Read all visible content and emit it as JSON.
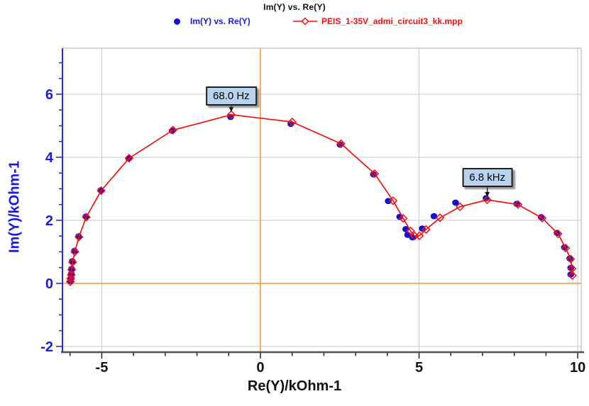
{
  "title": "Im(Y) vs. Re(Y)",
  "legend": [
    {
      "label": "Im(Y) vs. Re(Y)",
      "color": "#1a1ae0",
      "marker": "filled-circle"
    },
    {
      "label": "PEIS_1-35V_admi_circuit3_kk.mpp",
      "color": "#f50f0f",
      "marker": "line-open-diamond"
    }
  ],
  "colors": {
    "measured_blue": "#1111d4",
    "fit_red": "#f50f0f",
    "axis_blue": "#2c2cd8",
    "blue_text": "#1a1ae0",
    "black_text": "#111111",
    "zero_line_orange": "#ff9122",
    "grid_gray": "#c9c9c9",
    "border_gray": "#bfbfbf",
    "bottom_axis_gray": "#4f4f4f",
    "annotation_fill": "#b8d3ee",
    "annotation_border": "#1f1f1f"
  },
  "chart_data": {
    "type": "scatter",
    "title": "Im(Y) vs. Re(Y)",
    "xlabel": "Re(Y)/kOhm-1",
    "ylabel": "Im(Y)/kOhm-1",
    "xlim": [
      -6.24,
      10.11
    ],
    "ylim": [
      -2.16,
      7.46
    ],
    "grid": true,
    "legend_position": "top",
    "x_major_ticks": [
      -5,
      0,
      5,
      10
    ],
    "x_tick_labels": [
      "-5",
      "0",
      "5",
      "10"
    ],
    "x_minor_step": 1,
    "y_major_ticks": [
      -2,
      0,
      2,
      4,
      6
    ],
    "y_tick_labels": [
      "-2",
      "0",
      "2",
      "4",
      "6"
    ],
    "y_minor_step": 0.5,
    "zero_lines": {
      "x": 0,
      "y": 0
    },
    "series": [
      {
        "name": "Im(Y) vs. Re(Y)",
        "kind": "scatter",
        "marker": "filled-circle",
        "color": "#1111d4",
        "points": [
          [
            -5.98,
            0.08
          ],
          [
            -5.97,
            0.18
          ],
          [
            -5.96,
            0.3
          ],
          [
            -5.95,
            0.46
          ],
          [
            -5.93,
            0.7
          ],
          [
            -5.86,
            1.03
          ],
          [
            -5.73,
            1.49
          ],
          [
            -5.5,
            2.12
          ],
          [
            -5.03,
            2.95
          ],
          [
            -4.15,
            3.96
          ],
          [
            -2.78,
            4.84
          ],
          [
            -0.94,
            5.28
          ],
          [
            0.96,
            5.06
          ],
          [
            2.51,
            4.4
          ],
          [
            3.56,
            3.46
          ],
          [
            4.03,
            2.61
          ],
          [
            4.39,
            2.11
          ],
          [
            4.58,
            1.72
          ],
          [
            4.64,
            1.54
          ],
          [
            4.79,
            1.46
          ],
          [
            5.1,
            1.74
          ],
          [
            5.47,
            2.13
          ],
          [
            6.15,
            2.56
          ],
          [
            7.11,
            2.7
          ],
          [
            8.08,
            2.52
          ],
          [
            8.85,
            2.1
          ],
          [
            9.35,
            1.6
          ],
          [
            9.58,
            1.14
          ],
          [
            9.75,
            0.79
          ],
          [
            9.78,
            0.49
          ],
          [
            9.78,
            0.28
          ]
        ]
      },
      {
        "name": "PEIS_1-35V_admi_circuit3_kk.mpp",
        "kind": "line",
        "marker": "open-diamond",
        "color": "#f50f0f",
        "points": [
          [
            -5.99,
            0.05
          ],
          [
            -5.98,
            0.15
          ],
          [
            -5.96,
            0.27
          ],
          [
            -5.95,
            0.43
          ],
          [
            -5.92,
            0.67
          ],
          [
            -5.85,
            1.0
          ],
          [
            -5.72,
            1.47
          ],
          [
            -5.49,
            2.1
          ],
          [
            -5.02,
            2.94
          ],
          [
            -4.14,
            3.97
          ],
          [
            -2.76,
            4.86
          ],
          [
            -0.92,
            5.35
          ],
          [
            1.0,
            5.12
          ],
          [
            2.54,
            4.43
          ],
          [
            3.6,
            3.48
          ],
          [
            4.18,
            2.62
          ],
          [
            4.5,
            2.06
          ],
          [
            4.73,
            1.66
          ],
          [
            4.86,
            1.5
          ],
          [
            5.01,
            1.51
          ],
          [
            5.22,
            1.71
          ],
          [
            5.66,
            2.08
          ],
          [
            6.29,
            2.43
          ],
          [
            7.15,
            2.65
          ],
          [
            8.12,
            2.5
          ],
          [
            8.88,
            2.07
          ],
          [
            9.38,
            1.57
          ],
          [
            9.62,
            1.12
          ],
          [
            9.78,
            0.77
          ],
          [
            9.82,
            0.47
          ],
          [
            9.83,
            0.25
          ]
        ]
      }
    ],
    "annotations": [
      {
        "label": "68.0 Hz",
        "x": -0.92,
        "y": 5.35,
        "box_dy": -40
      },
      {
        "label": "6.8 kHz",
        "x": 7.15,
        "y": 2.65,
        "box_dy": -45
      }
    ]
  }
}
